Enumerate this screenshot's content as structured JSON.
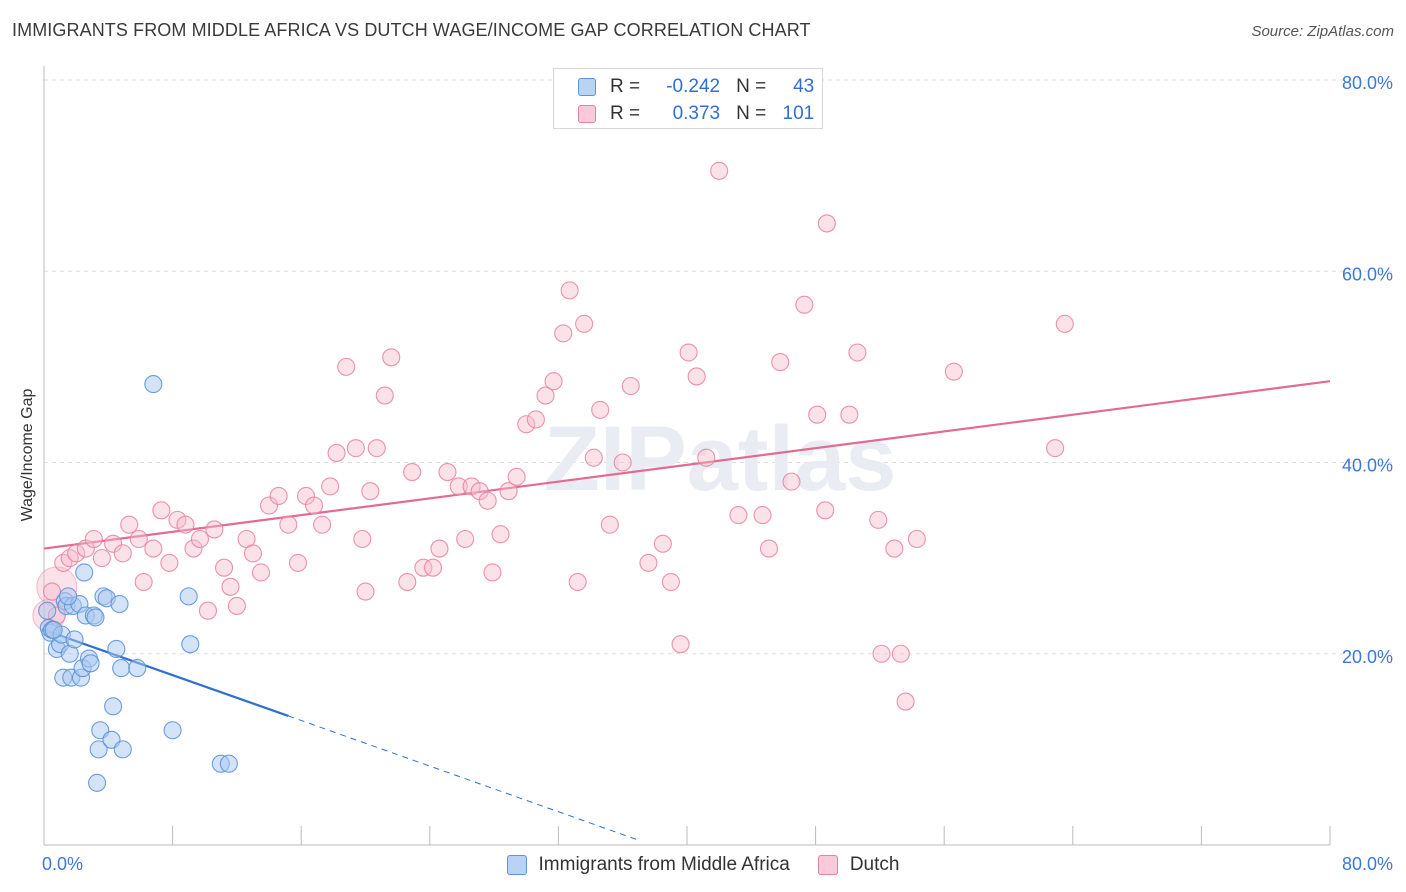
{
  "title": "IMMIGRANTS FROM MIDDLE AFRICA VS DUTCH WAGE/INCOME GAP CORRELATION CHART",
  "source": "Source: ZipAtlas.com",
  "watermark": "ZIPatlas",
  "legend_top": {
    "rows": [
      {
        "r_label": "R =",
        "r_value": "-0.242",
        "n_label": "N =",
        "n_value": "43"
      },
      {
        "r_label": "R =",
        "r_value": "0.373",
        "n_label": "N =",
        "n_value": "101"
      }
    ]
  },
  "legend_bottom": {
    "items": [
      "Immigrants from Middle Africa",
      "Dutch"
    ]
  },
  "colors": {
    "blue_fill": "#a9c8f0",
    "blue_stroke": "#5b93dc",
    "blue_line": "#2f6fcf",
    "pink_fill": "#f6bccd",
    "pink_stroke": "#e9809f",
    "pink_line": "#e36a92",
    "grid": "#dddddd",
    "tick_label": "#3b78d8"
  },
  "chart_data": {
    "type": "scatter",
    "title": "IMMIGRANTS FROM MIDDLE AFRICA VS DUTCH WAGE/INCOME GAP CORRELATION CHART",
    "xlabel": "",
    "ylabel": "Wage/Income Gap",
    "xlim": [
      0,
      80
    ],
    "ylim": [
      0,
      80
    ],
    "x_tick_labels": [
      "0.0%",
      "80.0%"
    ],
    "y_ticks": [
      20,
      40,
      60,
      80
    ],
    "y_tick_labels": [
      "20.0%",
      "40.0%",
      "60.0%",
      "80.0%"
    ],
    "grid": true,
    "series": [
      {
        "name": "Immigrants from Middle Africa",
        "color": "blue",
        "r": -0.242,
        "n": 43,
        "points": [
          [
            0.2,
            24.5
          ],
          [
            0.3,
            22.7
          ],
          [
            0.4,
            22.2
          ],
          [
            0.5,
            22.5
          ],
          [
            0.8,
            20.5
          ],
          [
            1.0,
            21.0
          ],
          [
            1.1,
            22.0
          ],
          [
            1.2,
            17.5
          ],
          [
            1.3,
            25.5
          ],
          [
            1.4,
            25.0
          ],
          [
            1.6,
            20.0
          ],
          [
            1.7,
            17.5
          ],
          [
            1.8,
            25.0
          ],
          [
            1.9,
            21.5
          ],
          [
            2.2,
            25.2
          ],
          [
            2.3,
            17.5
          ],
          [
            2.4,
            18.5
          ],
          [
            2.5,
            28.5
          ],
          [
            2.6,
            24.0
          ],
          [
            2.8,
            19.5
          ],
          [
            2.9,
            19.0
          ],
          [
            3.1,
            24.0
          ],
          [
            3.2,
            23.8
          ],
          [
            3.3,
            6.5
          ],
          [
            3.4,
            10.0
          ],
          [
            3.5,
            12.0
          ],
          [
            3.7,
            26.0
          ],
          [
            3.9,
            25.8
          ],
          [
            4.2,
            11.0
          ],
          [
            4.3,
            14.5
          ],
          [
            4.5,
            20.5
          ],
          [
            4.7,
            25.2
          ],
          [
            4.8,
            18.5
          ],
          [
            4.9,
            10.0
          ],
          [
            5.8,
            18.5
          ],
          [
            6.8,
            48.2
          ],
          [
            8.0,
            12.0
          ],
          [
            9.0,
            26.0
          ],
          [
            9.1,
            21.0
          ],
          [
            11.0,
            8.5
          ],
          [
            11.5,
            8.5
          ],
          [
            0.6,
            22.5
          ],
          [
            1.5,
            26.0
          ]
        ],
        "trend": {
          "x0": 0,
          "y0": 22.5,
          "x1": 15.2,
          "y1": 13.5,
          "dash_to_x": 37,
          "dash_to_y": 0.5
        }
      },
      {
        "name": "Dutch",
        "color": "pink",
        "r": 0.373,
        "n": 101,
        "points": [
          [
            0.5,
            26.5
          ],
          [
            0.8,
            24.0
          ],
          [
            1.2,
            29.5
          ],
          [
            1.6,
            30.0
          ],
          [
            2.0,
            30.5
          ],
          [
            2.6,
            31.0
          ],
          [
            3.1,
            32.0
          ],
          [
            3.6,
            30.0
          ],
          [
            4.3,
            31.5
          ],
          [
            4.9,
            30.5
          ],
          [
            5.3,
            33.5
          ],
          [
            5.9,
            32.0
          ],
          [
            6.2,
            27.5
          ],
          [
            6.8,
            31.0
          ],
          [
            7.3,
            35.0
          ],
          [
            7.8,
            29.5
          ],
          [
            8.3,
            34.0
          ],
          [
            8.8,
            33.5
          ],
          [
            9.3,
            31.0
          ],
          [
            9.7,
            32.0
          ],
          [
            10.2,
            24.5
          ],
          [
            10.6,
            33.0
          ],
          [
            11.2,
            29.0
          ],
          [
            11.6,
            27.0
          ],
          [
            12.0,
            25.0
          ],
          [
            12.6,
            32.0
          ],
          [
            13.0,
            30.5
          ],
          [
            13.5,
            28.5
          ],
          [
            14.0,
            35.5
          ],
          [
            14.6,
            36.5
          ],
          [
            15.2,
            33.5
          ],
          [
            15.8,
            29.5
          ],
          [
            16.3,
            36.5
          ],
          [
            16.8,
            35.5
          ],
          [
            17.3,
            33.5
          ],
          [
            17.8,
            37.5
          ],
          [
            18.2,
            41.0
          ],
          [
            18.8,
            50.0
          ],
          [
            19.4,
            41.5
          ],
          [
            19.8,
            32.0
          ],
          [
            20.3,
            37.0
          ],
          [
            20.7,
            41.5
          ],
          [
            21.2,
            47.0
          ],
          [
            21.6,
            51.0
          ],
          [
            22.6,
            27.5
          ],
          [
            22.9,
            39.0
          ],
          [
            23.6,
            29.0
          ],
          [
            24.2,
            29.0
          ],
          [
            24.6,
            31.0
          ],
          [
            25.1,
            39.0
          ],
          [
            25.8,
            37.5
          ],
          [
            26.2,
            32.0
          ],
          [
            26.6,
            37.5
          ],
          [
            27.1,
            37.0
          ],
          [
            27.6,
            36.0
          ],
          [
            27.9,
            28.5
          ],
          [
            28.4,
            32.5
          ],
          [
            28.9,
            37.0
          ],
          [
            29.4,
            38.5
          ],
          [
            30.0,
            44.0
          ],
          [
            30.6,
            44.5
          ],
          [
            31.2,
            47.0
          ],
          [
            31.7,
            48.5
          ],
          [
            32.3,
            53.5
          ],
          [
            32.7,
            58.0
          ],
          [
            33.2,
            27.5
          ],
          [
            33.6,
            54.5
          ],
          [
            34.2,
            40.5
          ],
          [
            34.6,
            45.5
          ],
          [
            35.2,
            33.5
          ],
          [
            36.0,
            40.0
          ],
          [
            36.5,
            48.0
          ],
          [
            37.6,
            29.5
          ],
          [
            38.5,
            31.5
          ],
          [
            39.0,
            27.5
          ],
          [
            39.6,
            21.0
          ],
          [
            40.1,
            51.5
          ],
          [
            40.6,
            49.0
          ],
          [
            41.2,
            40.5
          ],
          [
            42.0,
            70.5
          ],
          [
            43.2,
            34.5
          ],
          [
            44.7,
            34.5
          ],
          [
            45.1,
            31.0
          ],
          [
            45.8,
            50.5
          ],
          [
            46.5,
            38.0
          ],
          [
            47.3,
            56.5
          ],
          [
            48.1,
            45.0
          ],
          [
            48.6,
            35.0
          ],
          [
            48.7,
            65.0
          ],
          [
            50.1,
            45.0
          ],
          [
            50.6,
            51.5
          ],
          [
            51.9,
            34.0
          ],
          [
            52.1,
            20.0
          ],
          [
            52.9,
            31.0
          ],
          [
            53.3,
            20.0
          ],
          [
            53.6,
            15.0
          ],
          [
            54.3,
            32.0
          ],
          [
            56.6,
            49.5
          ],
          [
            62.9,
            41.5
          ],
          [
            63.5,
            54.5
          ],
          [
            20.0,
            26.5
          ]
        ],
        "trend": {
          "x0": 0,
          "y0": 31.0,
          "x1": 80,
          "y1": 48.5
        }
      }
    ]
  }
}
